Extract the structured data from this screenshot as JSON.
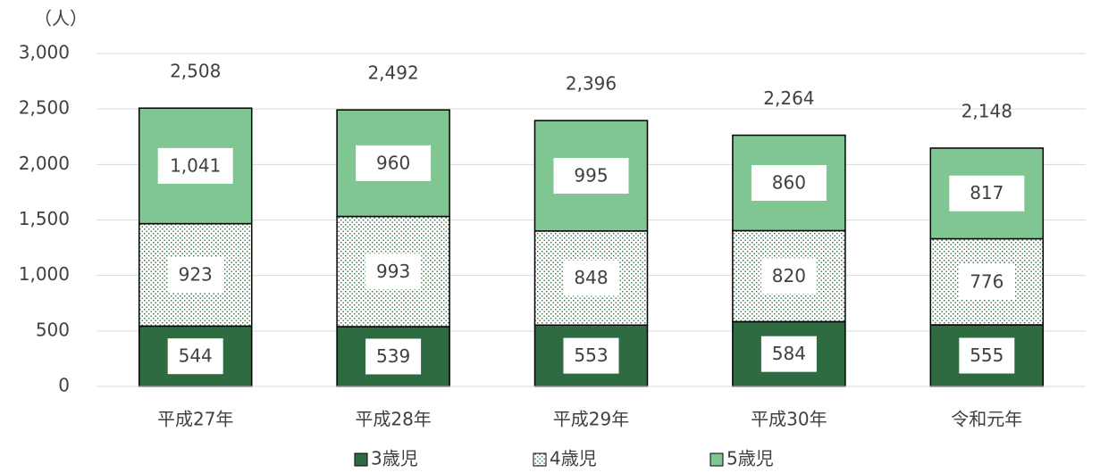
{
  "chart_data": {
    "type": "stacked_bar",
    "y_unit": "（人）",
    "categories": [
      "平成27年",
      "平成28年",
      "平成29年",
      "平成30年",
      "令和元年"
    ],
    "series": [
      {
        "name": "3歳児",
        "color": "#2e6b40",
        "values": [
          544,
          539,
          553,
          584,
          555
        ]
      },
      {
        "name": "4歳児",
        "color": "#ffffff",
        "pattern": "dots",
        "values": [
          923,
          993,
          848,
          820,
          776
        ]
      },
      {
        "name": "5歳児",
        "color": "#80c692",
        "values": [
          1041,
          960,
          995,
          860,
          817
        ],
        "value_labels": [
          "1,041",
          "960",
          "995",
          "860",
          "817"
        ]
      }
    ],
    "totals": {
      "values": [
        2508,
        2492,
        2396,
        2264,
        2148
      ],
      "value_labels": [
        "2,508",
        "2,492",
        "2,396",
        "2,264",
        "2,148"
      ]
    },
    "ylim": [
      0,
      3000
    ],
    "yticks": [
      0,
      500,
      {
        "value": 1000,
        "label": "1,000"
      },
      {
        "value": 1500,
        "label": "1,500"
      },
      {
        "value": 2000,
        "label": "2,000"
      },
      {
        "value": 2500,
        "label": "2,500"
      },
      {
        "value": 3000,
        "label": "3,000"
      }
    ],
    "grid": true,
    "legend": "bottom"
  }
}
